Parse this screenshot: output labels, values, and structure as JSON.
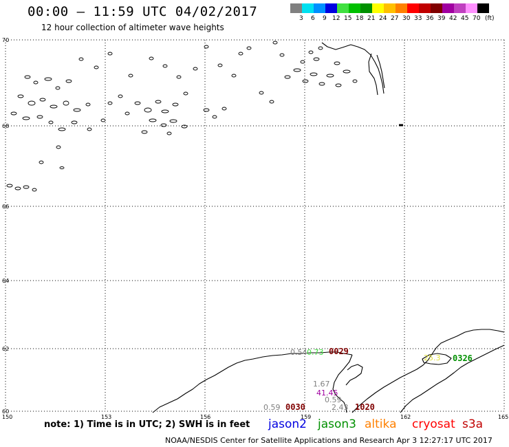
{
  "header": {
    "title": "00:00 – 11:59 UTC 04/02/2017",
    "subtitle": "12 hour collection of altimeter wave heights"
  },
  "legend": {
    "unit": "(ft)",
    "items": [
      {
        "label": "3",
        "color": "#808080"
      },
      {
        "label": "6",
        "color": "#00e0f0"
      },
      {
        "label": "9",
        "color": "#0090ff"
      },
      {
        "label": "12",
        "color": "#0000e0"
      },
      {
        "label": "15",
        "color": "#40e040"
      },
      {
        "label": "18",
        "color": "#00c000"
      },
      {
        "label": "21",
        "color": "#009000"
      },
      {
        "label": "24",
        "color": "#ffff00"
      },
      {
        "label": "27",
        "color": "#ffc000"
      },
      {
        "label": "30",
        "color": "#ff8000"
      },
      {
        "label": "33",
        "color": "#ff0000"
      },
      {
        "label": "36",
        "color": "#c00000"
      },
      {
        "label": "39",
        "color": "#800000"
      },
      {
        "label": "42",
        "color": "#a000a0"
      },
      {
        "label": "45",
        "color": "#c040c0"
      },
      {
        "label": "70",
        "color": "#ff90ff"
      },
      {
        "label": "",
        "color": "#000000"
      }
    ]
  },
  "map": {
    "lat_labels": [
      "70",
      "68",
      "66",
      "64",
      "62",
      "60"
    ],
    "lon_labels": [
      "150",
      "153",
      "156",
      "159",
      "162",
      "165"
    ],
    "wave_values": [
      {
        "text": "0.54",
        "color": "#808080"
      },
      {
        "text": "0.73",
        "color": "#40e040"
      },
      {
        "text": "1.67",
        "color": "#808080"
      },
      {
        "text": "41.45",
        "color": "#a000a0"
      },
      {
        "text": "0.59",
        "color": "#808080"
      },
      {
        "text": "2.43",
        "color": "#808080"
      },
      {
        "text": "0.59",
        "color": "#808080"
      },
      {
        "text": "25.3",
        "color": "#e0e040"
      }
    ],
    "pass_times": [
      {
        "text": "0029",
        "color": "#800000"
      },
      {
        "text": "0030",
        "color": "#800000"
      },
      {
        "text": "1020",
        "color": "#800000"
      },
      {
        "text": "0326",
        "color": "#009000"
      }
    ]
  },
  "footer": {
    "note": "note: 1) Time is in UTC; 2) SWH is in feet",
    "satellites": [
      {
        "name": "jason2",
        "color": "#0000e0"
      },
      {
        "name": "jason3",
        "color": "#009000"
      },
      {
        "name": "altika",
        "color": "#ff8000"
      },
      {
        "name": "cryosat",
        "color": "#ff0000"
      },
      {
        "name": "s3a",
        "color": "#c00000"
      }
    ],
    "credit": "NOAA/NESDIS Center for Satellite Applications and Research   Apr  3 12:27:17 UTC 2017"
  }
}
